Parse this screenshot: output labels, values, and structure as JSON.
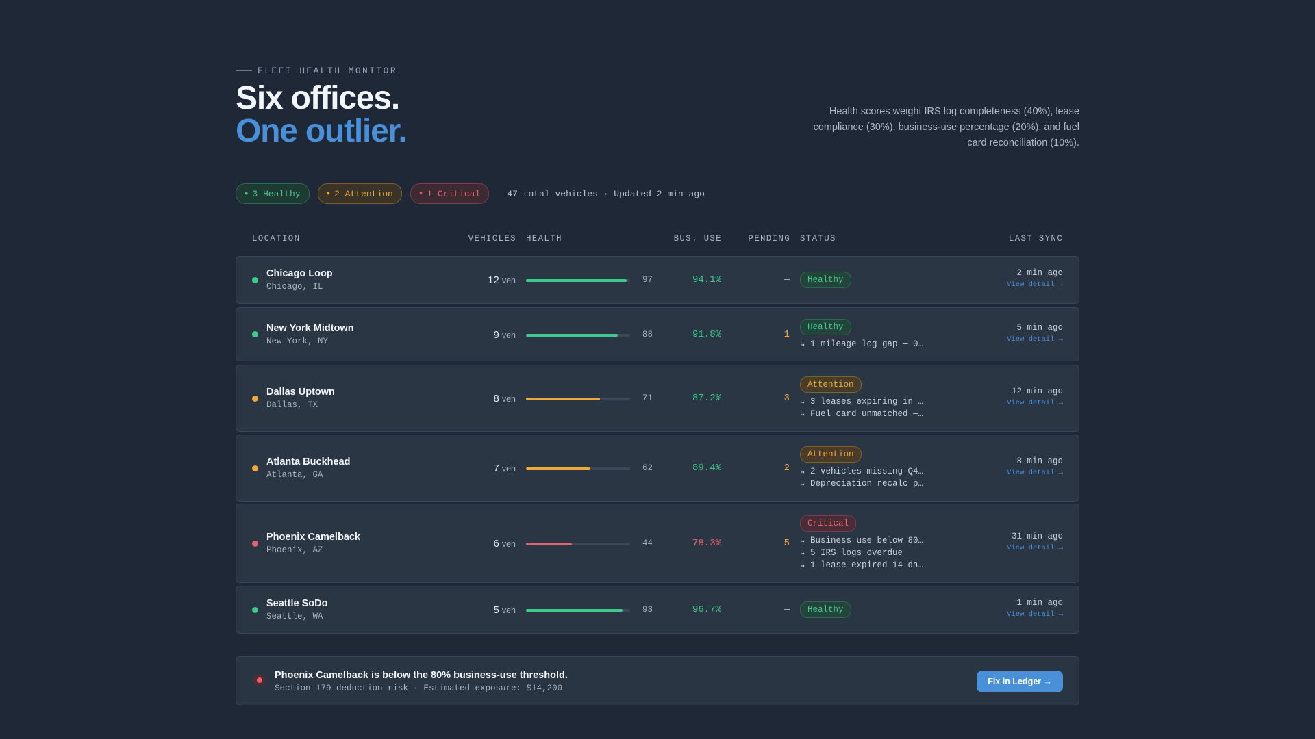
{
  "header": {
    "eyebrow": "FLEET HEALTH MONITOR",
    "title_line1": "Six offices.",
    "title_line2": "One outlier.",
    "description": "Health scores weight IRS log completeness (40%), lease compliance (30%), business-use percentage (20%), and fuel card reconciliation (10%)."
  },
  "summary": {
    "healthy": "3 Healthy",
    "attention": "2 Attention",
    "critical": "1 Critical",
    "meta": "47 total vehicles · Updated 2 min ago",
    "dot": "●"
  },
  "columns": {
    "location": "LOCATION",
    "vehicles": "VEHICLES",
    "health": "HEALTH",
    "bus_use": "BUS. USE",
    "pending": "PENDING",
    "status": "STATUS",
    "last_sync": "LAST SYNC"
  },
  "colors": {
    "green": "#3fc98a",
    "amber": "#f0a93a",
    "red": "#e7626a",
    "accent": "#4a90d9"
  },
  "veh_unit": "veh",
  "view_detail": "View detail →",
  "rows": [
    {
      "name": "Chicago Loop",
      "city": "Chicago, IL",
      "vehicles": "12",
      "health": 97,
      "health_text": "97",
      "bus_use": "94.1%",
      "pending": "—",
      "status": "Healthy",
      "level": "green",
      "notes": [],
      "sync": "2 min ago"
    },
    {
      "name": "New York Midtown",
      "city": "New York, NY",
      "vehicles": "9",
      "health": 88,
      "health_text": "88",
      "bus_use": "91.8%",
      "pending": "1",
      "status": "Healthy",
      "level": "green",
      "notes": [
        "↳ 1 mileage log gap — 0…"
      ],
      "sync": "5 min ago"
    },
    {
      "name": "Dallas Uptown",
      "city": "Dallas, TX",
      "vehicles": "8",
      "health": 71,
      "health_text": "71",
      "bus_use": "87.2%",
      "pending": "3",
      "status": "Attention",
      "level": "amber",
      "notes": [
        "↳ 3 leases expiring in …",
        "↳ Fuel card unmatched —…"
      ],
      "sync": "12 min ago"
    },
    {
      "name": "Atlanta Buckhead",
      "city": "Atlanta, GA",
      "vehicles": "7",
      "health": 62,
      "health_text": "62",
      "bus_use": "89.4%",
      "pending": "2",
      "status": "Attention",
      "level": "amber",
      "notes": [
        "↳ 2 vehicles missing Q4…",
        "↳ Depreciation recalc p…"
      ],
      "sync": "8 min ago"
    },
    {
      "name": "Phoenix Camelback",
      "city": "Phoenix, AZ",
      "vehicles": "6",
      "health": 44,
      "health_text": "44",
      "bus_use": "78.3%",
      "pending": "5",
      "status": "Critical",
      "level": "red",
      "notes": [
        "↳ Business use below 80…",
        "↳ 5 IRS logs overdue",
        "↳ 1 lease expired 14 da…"
      ],
      "sync": "31 min ago"
    },
    {
      "name": "Seattle SoDo",
      "city": "Seattle, WA",
      "vehicles": "5",
      "health": 93,
      "health_text": "93",
      "bus_use": "96.7%",
      "pending": "—",
      "status": "Healthy",
      "level": "green",
      "notes": [],
      "sync": "1 min ago"
    }
  ],
  "alert": {
    "headline": "Phoenix Camelback is below the 80% business-use threshold.",
    "sub": "Section 179 deduction risk · Estimated exposure: $14,200",
    "button": "Fix in Ledger →"
  }
}
